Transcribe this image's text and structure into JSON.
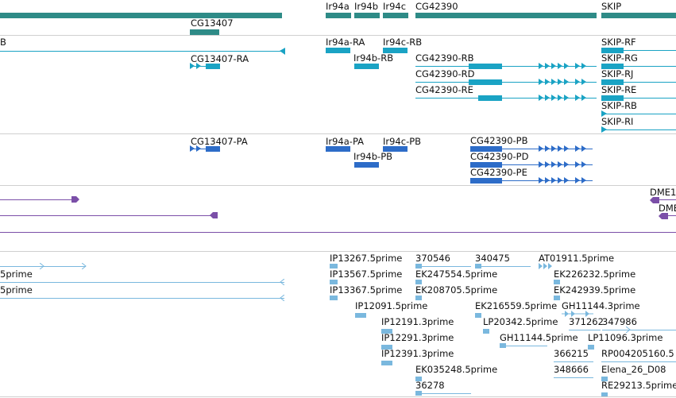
{
  "colors": {
    "gene": "#2e8b87",
    "transcript": "#1aa3c4",
    "protein": "#2d6cc8",
    "alignment": "#7b4fa8",
    "est": "#7ab8de"
  },
  "genes": {
    "ir94a": "Ir94a",
    "ir94b": "Ir94b",
    "ir94c": "Ir94c",
    "cg42390": "CG42390",
    "skip": "SKIP",
    "cg13407": "CG13407"
  },
  "transcripts": {
    "partial_b": "B",
    "ir94a_ra": "Ir94a-RA",
    "ir94c_rb": "Ir94c-RB",
    "skip_rf": "SKIP-RF",
    "cg13407_ra": "CG13407-RA",
    "ir94b_rb": "Ir94b-RB",
    "cg42390_rb": "CG42390-RB",
    "skip_rg": "SKIP-RG",
    "cg42390_rd": "CG42390-RD",
    "skip_rj": "SKIP-RJ",
    "cg42390_re": "CG42390-RE",
    "skip_re": "SKIP-RE",
    "skip_rb": "SKIP-RB",
    "skip_ri": "SKIP-RI"
  },
  "proteins": {
    "cg13407_pa": "CG13407-PA",
    "ir94a_pa": "Ir94a-PA",
    "ir94c_pb": "Ir94c-PB",
    "cg42390_pb": "CG42390-PB",
    "ir94b_pb": "Ir94b-PB",
    "cg42390_pd": "CG42390-PD",
    "cg42390_pe": "CG42390-PE"
  },
  "alignments": {
    "dme1": "DME1",
    "dme2": "DME"
  },
  "ests": {
    "left_a": "5prime",
    "left_b": "5prime",
    "ip13267": "IP13267.5prime",
    "n370546": "370546",
    "n340475": "340475",
    "at01911": "AT01911.5prime",
    "ip13567": "IP13567.5prime",
    "ek247554": "EK247554.5prime",
    "ek226232": "EK226232.5prime",
    "ip13367": "IP13367.5prime",
    "ek208705": "EK208705.5prime",
    "ek242939": "EK242939.5prime",
    "ip12091": "IP12091.5prime",
    "ek216559": "EK216559.5prime",
    "gh11144": "GH11144.3prime",
    "ip12191": "IP12191.3prime",
    "lp20342": "LP20342.5prime",
    "n371262": "371262",
    "n347986": "347986",
    "ip12291": "IP12291.3prime",
    "gh11144_5": "GH11144.5prime",
    "lp11096": "LP11096.3prime",
    "ip12391": "IP12391.3prime",
    "n366215": "366215",
    "rp004205160": "RP004205160.5",
    "ek035248": "EK035248.5prime",
    "n348666": "348666",
    "elena": "Elena_26_D08",
    "n36278": "36278",
    "re29213": "RE29213.5prime"
  }
}
